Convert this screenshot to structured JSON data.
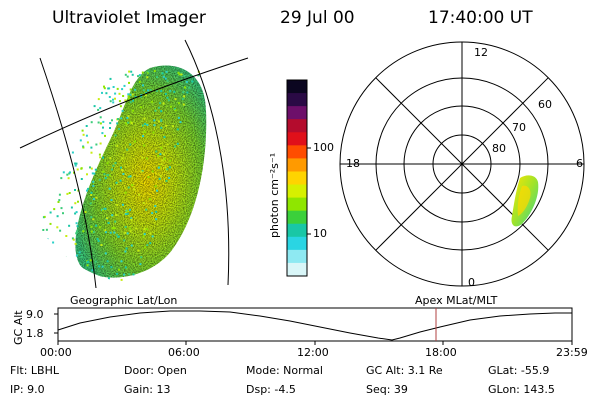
{
  "header": {
    "instrument": "Ultraviolet Imager",
    "date": "29 Jul 00",
    "time": "17:40:00 UT"
  },
  "left_panel": {
    "caption": "Geographic Lat/Lon"
  },
  "right_panel": {
    "caption": "Apex MLat/MLT",
    "mlt_labels": [
      "12",
      "6",
      "0",
      "18"
    ],
    "lat_labels": [
      "60",
      "70",
      "80"
    ]
  },
  "colorbar": {
    "unit_label": "photon cm⁻²s⁻¹",
    "tick_labels": [
      "100",
      "10"
    ],
    "colors": [
      "#0b0620",
      "#2a0a45",
      "#6d0f6a",
      "#b40c2d",
      "#e0101a",
      "#ff4d00",
      "#ff9a00",
      "#ffd400",
      "#d7f000",
      "#8fe600",
      "#3bd03b",
      "#19c7a6",
      "#2ad5e3",
      "#8ee9f2",
      "#d9f6f8"
    ]
  },
  "altitude_plot": {
    "ylabel": "GC Alt",
    "y_ticks": [
      "9.0",
      "1.8"
    ],
    "x_ticks": [
      "00:00",
      "06:00",
      "12:00",
      "18:00",
      "23:59"
    ],
    "current_marker_color": "#b04040"
  },
  "footer": {
    "row1": {
      "flt": "Flt:  LBHL",
      "door": "Door:  Open",
      "mode": "Mode:  Normal",
      "gc_alt": "GC Alt:  3.1 Re",
      "glat": "GLat:    -55.9"
    },
    "row2": {
      "ip": "IP:   9.0",
      "gain": "Gain:  13",
      "dsp": "Dsp:     -4.5",
      "seq": "Seq:  39",
      "glon": "GLon:   143.5"
    }
  }
}
